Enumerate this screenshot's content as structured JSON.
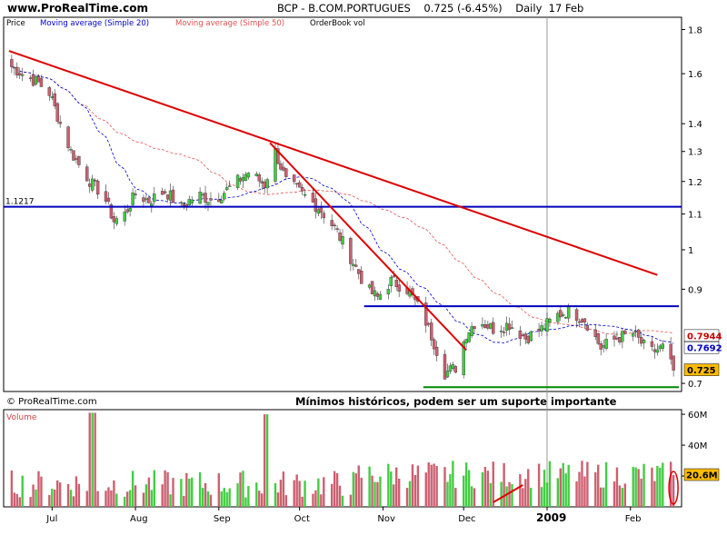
{
  "header": {
    "site": "www.ProRealTime.com",
    "title": "BCP - B.COM.PORTUGUES    0.725 (-6.45%)    Daily  17 Feb",
    "copyright": "© ProRealTime.com"
  },
  "legend": [
    {
      "label": "Price",
      "color": "#000000"
    },
    {
      "label": "Moving average (Simple 20)",
      "color": "#0000cc"
    },
    {
      "label": "Moving average (Simple 50)",
      "color": "#e05050"
    },
    {
      "label": "OrderBook vol",
      "color": "#000000"
    }
  ],
  "colors": {
    "up": "#44cc44",
    "down": "#cc6070",
    "ma20": "#0000cc",
    "ma50": "#e05050",
    "trend": "#dd0000",
    "hline": "#0000bb",
    "support": "#008800"
  },
  "chart_data": {
    "type": "candlestick",
    "x_tick_labels": [
      "Jul",
      "Aug",
      "Sep",
      "Oct",
      "Nov",
      "Dec",
      "2009",
      "Feb"
    ],
    "x_tick_dates": [
      "2008-07-01",
      "2008-08-01",
      "2008-09-01",
      "2008-10-01",
      "2008-11-01",
      "2008-12-01",
      "2009-01-01",
      "2009-02-01"
    ],
    "y_scale": "log",
    "y_ticks": [
      0.7,
      0.9,
      1,
      1.1,
      1.2,
      1.3,
      1.4,
      1.6,
      1.8
    ],
    "ylim": [
      0.685,
      1.86
    ],
    "close_series": [
      [
        "2008-06-16",
        1.63
      ],
      [
        "2008-06-20",
        1.6
      ],
      [
        "2008-06-26",
        1.56
      ],
      [
        "2008-06-30",
        1.52
      ],
      [
        "2008-07-04",
        1.4
      ],
      [
        "2008-07-08",
        1.3
      ],
      [
        "2008-07-12",
        1.24
      ],
      [
        "2008-07-16",
        1.19
      ],
      [
        "2008-07-20",
        1.16
      ],
      [
        "2008-07-24",
        1.08
      ],
      [
        "2008-07-28",
        1.1
      ],
      [
        "2008-08-01",
        1.16
      ],
      [
        "2008-08-06",
        1.14
      ],
      [
        "2008-08-12",
        1.17
      ],
      [
        "2008-08-18",
        1.12
      ],
      [
        "2008-08-24",
        1.16
      ],
      [
        "2008-08-30",
        1.14
      ],
      [
        "2008-09-05",
        1.18
      ],
      [
        "2008-09-12",
        1.23
      ],
      [
        "2008-09-18",
        1.19
      ],
      [
        "2008-09-22",
        1.3
      ],
      [
        "2008-09-26",
        1.2
      ],
      [
        "2008-10-02",
        1.16
      ],
      [
        "2008-10-08",
        1.12
      ],
      [
        "2008-10-14",
        1.06
      ],
      [
        "2008-10-20",
        0.98
      ],
      [
        "2008-10-26",
        0.9
      ],
      [
        "2008-10-30",
        0.88
      ],
      [
        "2008-11-04",
        0.92
      ],
      [
        "2008-11-10",
        0.9
      ],
      [
        "2008-11-16",
        0.84
      ],
      [
        "2008-11-20",
        0.78
      ],
      [
        "2008-11-24",
        0.72
      ],
      [
        "2008-11-28",
        0.73
      ],
      [
        "2008-12-02",
        0.8
      ],
      [
        "2008-12-06",
        0.83
      ],
      [
        "2008-12-12",
        0.81
      ],
      [
        "2008-12-18",
        0.82
      ],
      [
        "2008-12-24",
        0.79
      ],
      [
        "2008-12-30",
        0.81
      ],
      [
        "2009-01-05",
        0.84
      ],
      [
        "2009-01-09",
        0.85
      ],
      [
        "2009-01-15",
        0.83
      ],
      [
        "2009-01-21",
        0.77
      ],
      [
        "2009-01-27",
        0.79
      ],
      [
        "2009-02-02",
        0.8
      ],
      [
        "2009-02-08",
        0.76
      ],
      [
        "2009-02-13",
        0.77
      ],
      [
        "2009-02-17",
        0.725
      ]
    ],
    "last_price": "0.725",
    "ma20_last": "0.7692",
    "ma50_last": "0.7944",
    "horizontal_levels": [
      {
        "value": 1.1217,
        "label": "1.1217",
        "color": "#0000bb"
      },
      {
        "value": 0.86,
        "from": "2008-10-25",
        "to": "2009-02-19",
        "color": "#0000bb"
      },
      {
        "value": 0.693,
        "from": "2008-11-16",
        "to": "2009-02-19",
        "color": "#008800"
      }
    ],
    "trend_lines": [
      {
        "from": [
          "2008-06-15",
          1.7
        ],
        "to": [
          "2009-02-11",
          0.935
        ]
      },
      {
        "from": [
          "2008-09-20",
          1.33
        ],
        "to": [
          "2008-12-02",
          0.765
        ]
      }
    ],
    "annotation": "Mínimos históricos, podem ser um suporte importante",
    "volume": {
      "label": "Volume",
      "y_ticks": [
        "20M",
        "40M",
        "60M"
      ],
      "y_tick_values": [
        20,
        40,
        60
      ],
      "ylim": [
        0,
        63
      ],
      "unit": "M",
      "last": "20.6M",
      "max_bars": [
        [
          "2008-07-16",
          61
        ],
        [
          "2008-09-19",
          60
        ]
      ]
    }
  }
}
